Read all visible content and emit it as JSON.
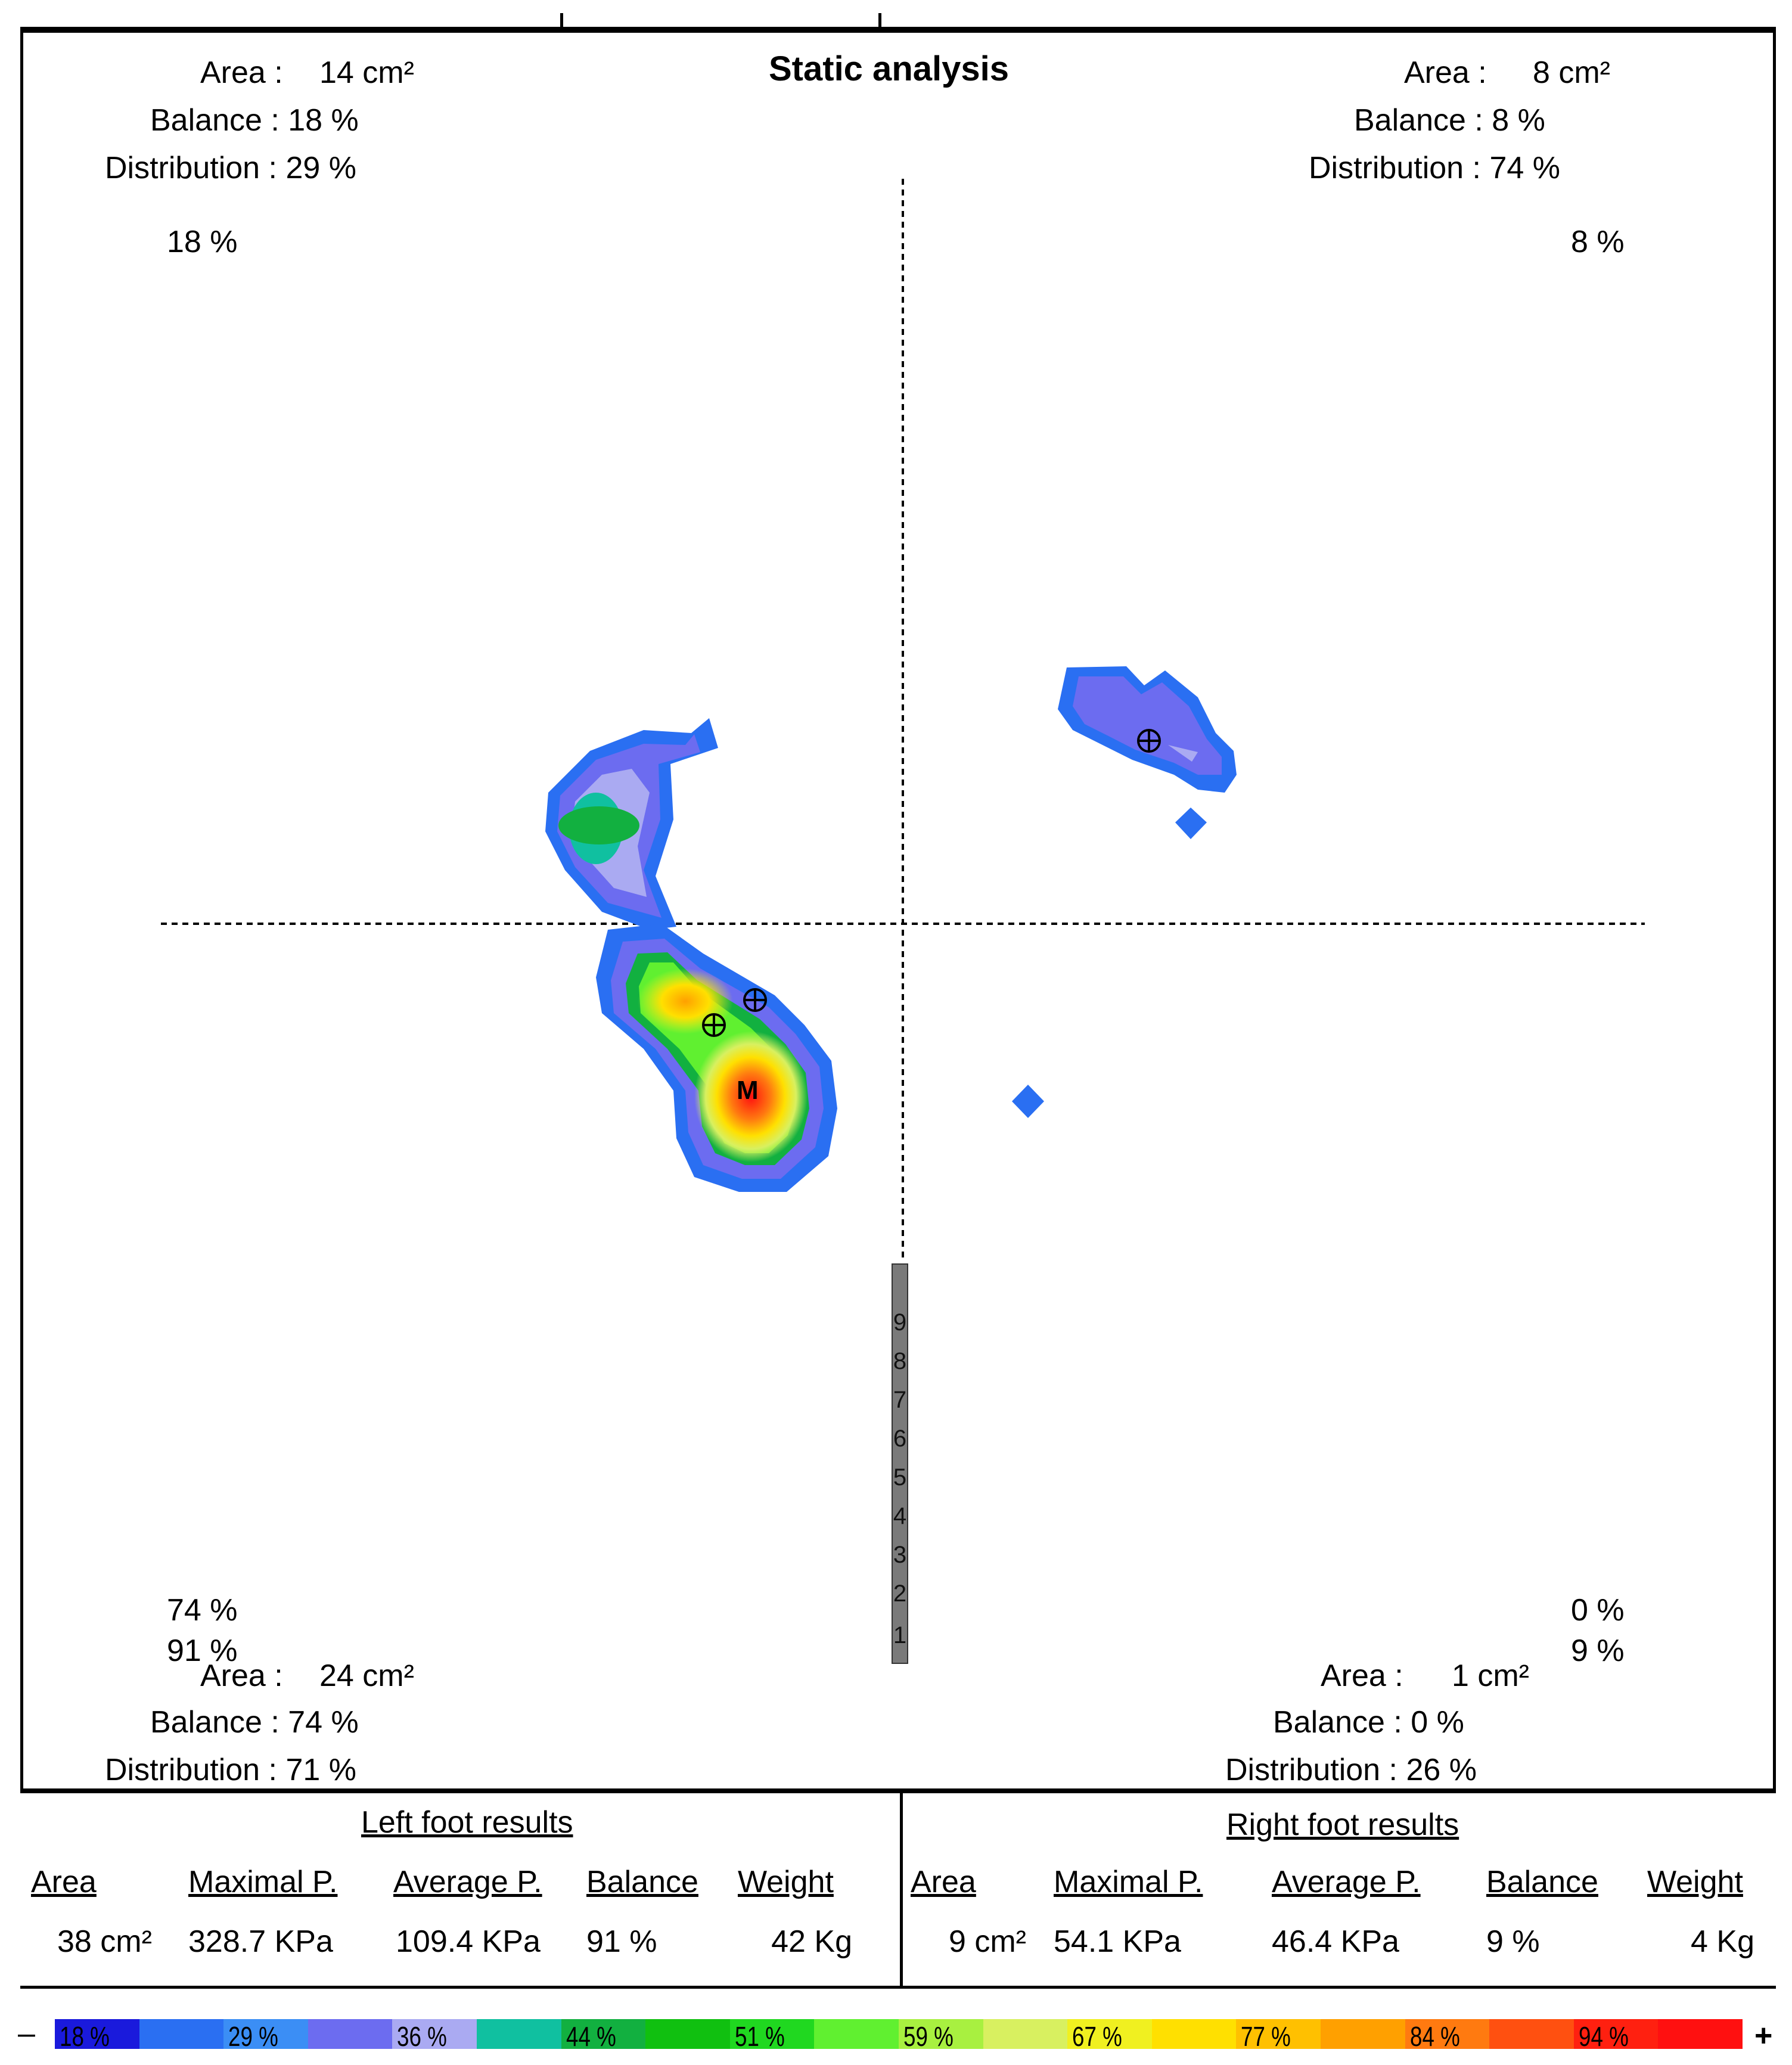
{
  "title": "Static analysis",
  "quadrants": {
    "top_left": {
      "area_label": "Area :",
      "area_value": "14 cm²",
      "balance": "Balance : 18 %",
      "distribution": "Distribution : 29 %",
      "percent": "18 %"
    },
    "top_right": {
      "area_label": "Area :",
      "area_value": "8 cm²",
      "balance": "Balance : 8 %",
      "distribution": "Distribution : 74 %",
      "percent": "8 %"
    },
    "bottom_left": {
      "area_label": "Area :",
      "area_value": "24 cm²",
      "balance": "Balance : 74 %",
      "distribution": "Distribution : 71 %",
      "percent": "74 %",
      "percent2": "91 %"
    },
    "bottom_right": {
      "area_label": "Area :",
      "area_value": "1 cm²",
      "balance": "Balance : 0 %",
      "distribution": "Distribution : 26 %",
      "percent": "0 %",
      "percent2": "9 %"
    }
  },
  "marker_label": "M",
  "scale_numbers": [
    "9",
    "8",
    "7",
    "6",
    "5",
    "4",
    "3",
    "2",
    "1"
  ],
  "left_results": {
    "heading": "Left foot results",
    "headers": [
      "Area",
      "Maximal P.",
      "Average P.",
      "Balance",
      "Weight"
    ],
    "values": [
      "38 cm²",
      "328.7 KPa",
      "109.4 KPa",
      "91 %",
      "42 Kg"
    ]
  },
  "right_results": {
    "heading": "Right foot results",
    "headers": [
      "Area",
      "Maximal P.",
      "Average P.",
      "Balance",
      "Weight"
    ],
    "values": [
      "9 cm²",
      "54.1 KPa",
      "46.4 KPa",
      "9 %",
      "4 Kg"
    ]
  },
  "legend": {
    "minus": "–",
    "plus": "+",
    "items": [
      {
        "label": "18 %",
        "color": "#1a1adc"
      },
      {
        "label": "",
        "color": "#2a6ff2"
      },
      {
        "label": "29 %",
        "color": "#3b8ef5"
      },
      {
        "label": "",
        "color": "#6c6cf0"
      },
      {
        "label": "36 %",
        "color": "#aaaaf2"
      },
      {
        "label": "",
        "color": "#10c0a0"
      },
      {
        "label": "44 %",
        "color": "#12b040"
      },
      {
        "label": "",
        "color": "#10c010"
      },
      {
        "label": "51 %",
        "color": "#20d820"
      },
      {
        "label": "",
        "color": "#60f030"
      },
      {
        "label": "59 %",
        "color": "#a8f040"
      },
      {
        "label": "",
        "color": "#d8f060"
      },
      {
        "label": "67 %",
        "color": "#f0f020"
      },
      {
        "label": "",
        "color": "#ffe000"
      },
      {
        "label": "77 %",
        "color": "#ffc000"
      },
      {
        "label": "",
        "color": "#ffa000"
      },
      {
        "label": "84 %",
        "color": "#ff7a10"
      },
      {
        "label": "",
        "color": "#ff5010"
      },
      {
        "label": "94 %",
        "color": "#ff2010"
      },
      {
        "label": "",
        "color": "#ff1010"
      }
    ]
  }
}
